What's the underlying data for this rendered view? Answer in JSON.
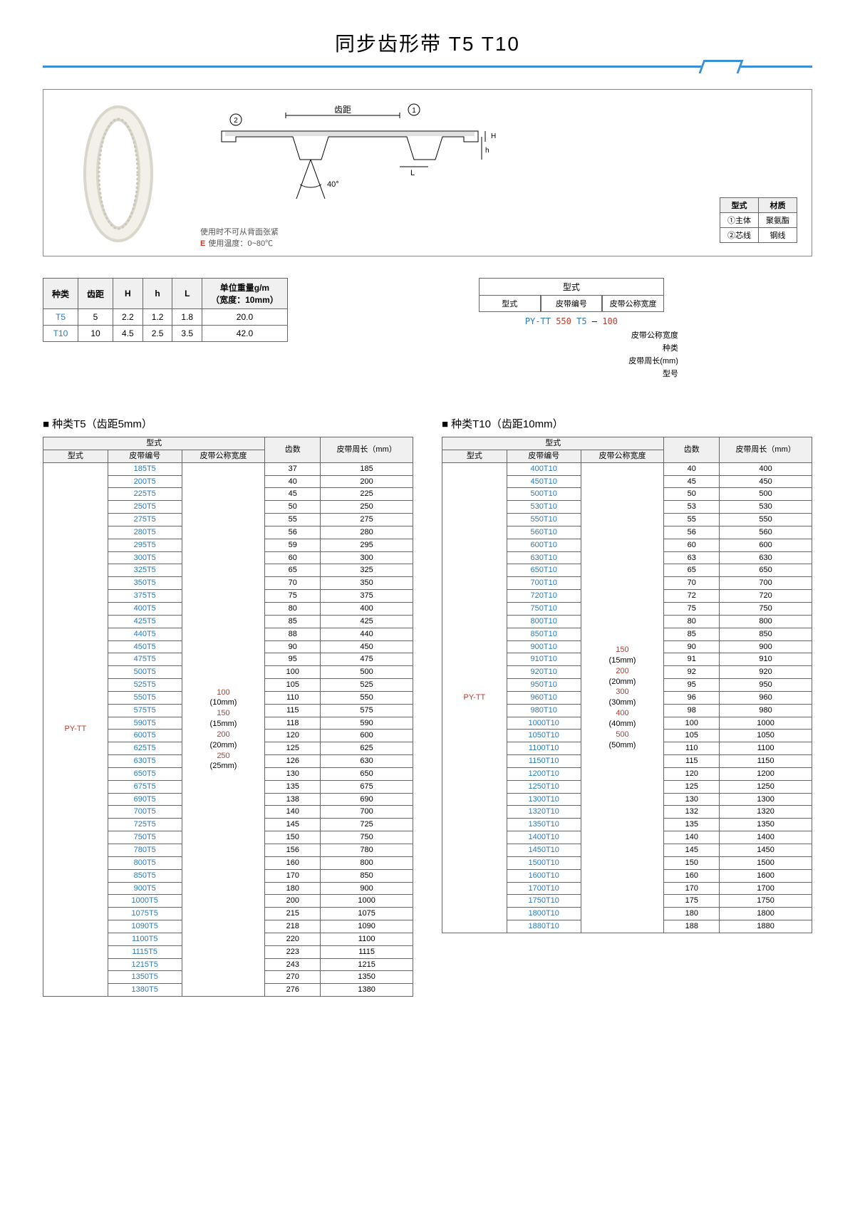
{
  "title": "同步齿形带 T5 T10",
  "notes": {
    "usage": "使用时不可从背面张紧",
    "temp_label": "使用温度：0~80℃"
  },
  "material": {
    "header": [
      "型式",
      "材质"
    ],
    "rows": [
      [
        "①主体",
        "聚氨酯"
      ],
      [
        "②芯线",
        "钢线"
      ]
    ]
  },
  "diagram_labels": {
    "pitch": "齿距",
    "angle": "40°",
    "m1": "①",
    "m2": "②",
    "L": "L",
    "h": "h",
    "H": "H"
  },
  "spec": {
    "headers": [
      "种类",
      "齿距",
      "H",
      "h",
      "L",
      "单位重量g/m\n（宽度：10mm）"
    ],
    "rows": [
      [
        "T5",
        "5",
        "2.2",
        "1.2",
        "1.8",
        "20.0"
      ],
      [
        "T10",
        "10",
        "4.5",
        "2.5",
        "3.5",
        "42.0"
      ]
    ]
  },
  "format": {
    "header": "型式",
    "sub": [
      "型式",
      "皮带编号",
      "皮带公称宽度"
    ],
    "example": {
      "prefix": "PY-TT",
      "num": "550",
      "type": "T5",
      "dash": "–",
      "width": "100"
    },
    "legends": [
      "皮带公称宽度",
      "种类",
      "皮带周长(mm)",
      "型号"
    ]
  },
  "t5": {
    "title": "种类T5（齿距5mm）",
    "headers": {
      "fmt": "型式",
      "sub": [
        "型式",
        "皮带编号",
        "皮带公称宽度"
      ],
      "teeth": "齿数",
      "len": "皮带周长（mm）"
    },
    "type": "PY-TT",
    "widths": [
      "100",
      "(10mm)",
      "150",
      "(15mm)",
      "200",
      "(20mm)",
      "250",
      "(25mm)"
    ],
    "rows": [
      [
        "185T5",
        "37",
        "185"
      ],
      [
        "200T5",
        "40",
        "200"
      ],
      [
        "225T5",
        "45",
        "225"
      ],
      [
        "250T5",
        "50",
        "250"
      ],
      [
        "275T5",
        "55",
        "275"
      ],
      [
        "280T5",
        "56",
        "280"
      ],
      [
        "295T5",
        "59",
        "295"
      ],
      [
        "300T5",
        "60",
        "300"
      ],
      [
        "325T5",
        "65",
        "325"
      ],
      [
        "350T5",
        "70",
        "350"
      ],
      [
        "375T5",
        "75",
        "375"
      ],
      [
        "400T5",
        "80",
        "400"
      ],
      [
        "425T5",
        "85",
        "425"
      ],
      [
        "440T5",
        "88",
        "440"
      ],
      [
        "450T5",
        "90",
        "450"
      ],
      [
        "475T5",
        "95",
        "475"
      ],
      [
        "500T5",
        "100",
        "500"
      ],
      [
        "525T5",
        "105",
        "525"
      ],
      [
        "550T5",
        "110",
        "550"
      ],
      [
        "575T5",
        "115",
        "575"
      ],
      [
        "590T5",
        "118",
        "590"
      ],
      [
        "600T5",
        "120",
        "600"
      ],
      [
        "625T5",
        "125",
        "625"
      ],
      [
        "630T5",
        "126",
        "630"
      ],
      [
        "650T5",
        "130",
        "650"
      ],
      [
        "675T5",
        "135",
        "675"
      ],
      [
        "690T5",
        "138",
        "690"
      ],
      [
        "700T5",
        "140",
        "700"
      ],
      [
        "725T5",
        "145",
        "725"
      ],
      [
        "750T5",
        "150",
        "750"
      ],
      [
        "780T5",
        "156",
        "780"
      ],
      [
        "800T5",
        "160",
        "800"
      ],
      [
        "850T5",
        "170",
        "850"
      ],
      [
        "900T5",
        "180",
        "900"
      ],
      [
        "1000T5",
        "200",
        "1000"
      ],
      [
        "1075T5",
        "215",
        "1075"
      ],
      [
        "1090T5",
        "218",
        "1090"
      ],
      [
        "1100T5",
        "220",
        "1100"
      ],
      [
        "1115T5",
        "223",
        "1115"
      ],
      [
        "1215T5",
        "243",
        "1215"
      ],
      [
        "1350T5",
        "270",
        "1350"
      ],
      [
        "1380T5",
        "276",
        "1380"
      ]
    ]
  },
  "t10": {
    "title": "种类T10（齿距10mm）",
    "headers": {
      "fmt": "型式",
      "sub": [
        "型式",
        "皮带编号",
        "皮带公称宽度"
      ],
      "teeth": "齿数",
      "len": "皮带周长（mm）"
    },
    "type": "PY-TT",
    "widths": [
      "150",
      "(15mm)",
      "200",
      "(20mm)",
      "300",
      "(30mm)",
      "400",
      "(40mm)",
      "500",
      "(50mm)"
    ],
    "rows": [
      [
        "400T10",
        "40",
        "400"
      ],
      [
        "450T10",
        "45",
        "450"
      ],
      [
        "500T10",
        "50",
        "500"
      ],
      [
        "530T10",
        "53",
        "530"
      ],
      [
        "550T10",
        "55",
        "550"
      ],
      [
        "560T10",
        "56",
        "560"
      ],
      [
        "600T10",
        "60",
        "600"
      ],
      [
        "630T10",
        "63",
        "630"
      ],
      [
        "650T10",
        "65",
        "650"
      ],
      [
        "700T10",
        "70",
        "700"
      ],
      [
        "720T10",
        "72",
        "720"
      ],
      [
        "750T10",
        "75",
        "750"
      ],
      [
        "800T10",
        "80",
        "800"
      ],
      [
        "850T10",
        "85",
        "850"
      ],
      [
        "900T10",
        "90",
        "900"
      ],
      [
        "910T10",
        "91",
        "910"
      ],
      [
        "920T10",
        "92",
        "920"
      ],
      [
        "950T10",
        "95",
        "950"
      ],
      [
        "960T10",
        "96",
        "960"
      ],
      [
        "980T10",
        "98",
        "980"
      ],
      [
        "1000T10",
        "100",
        "1000"
      ],
      [
        "1050T10",
        "105",
        "1050"
      ],
      [
        "1100T10",
        "110",
        "1100"
      ],
      [
        "1150T10",
        "115",
        "1150"
      ],
      [
        "1200T10",
        "120",
        "1200"
      ],
      [
        "1250T10",
        "125",
        "1250"
      ],
      [
        "1300T10",
        "130",
        "1300"
      ],
      [
        "1320T10",
        "132",
        "1320"
      ],
      [
        "1350T10",
        "135",
        "1350"
      ],
      [
        "1400T10",
        "140",
        "1400"
      ],
      [
        "1450T10",
        "145",
        "1450"
      ],
      [
        "1500T10",
        "150",
        "1500"
      ],
      [
        "1600T10",
        "160",
        "1600"
      ],
      [
        "1700T10",
        "170",
        "1700"
      ],
      [
        "1750T10",
        "175",
        "1750"
      ],
      [
        "1800T10",
        "180",
        "1800"
      ],
      [
        "1880T10",
        "188",
        "1880"
      ]
    ]
  },
  "colors": {
    "accent": "#3a8fd6",
    "code": "#2b7bb9",
    "highlight": "#c0392b"
  }
}
